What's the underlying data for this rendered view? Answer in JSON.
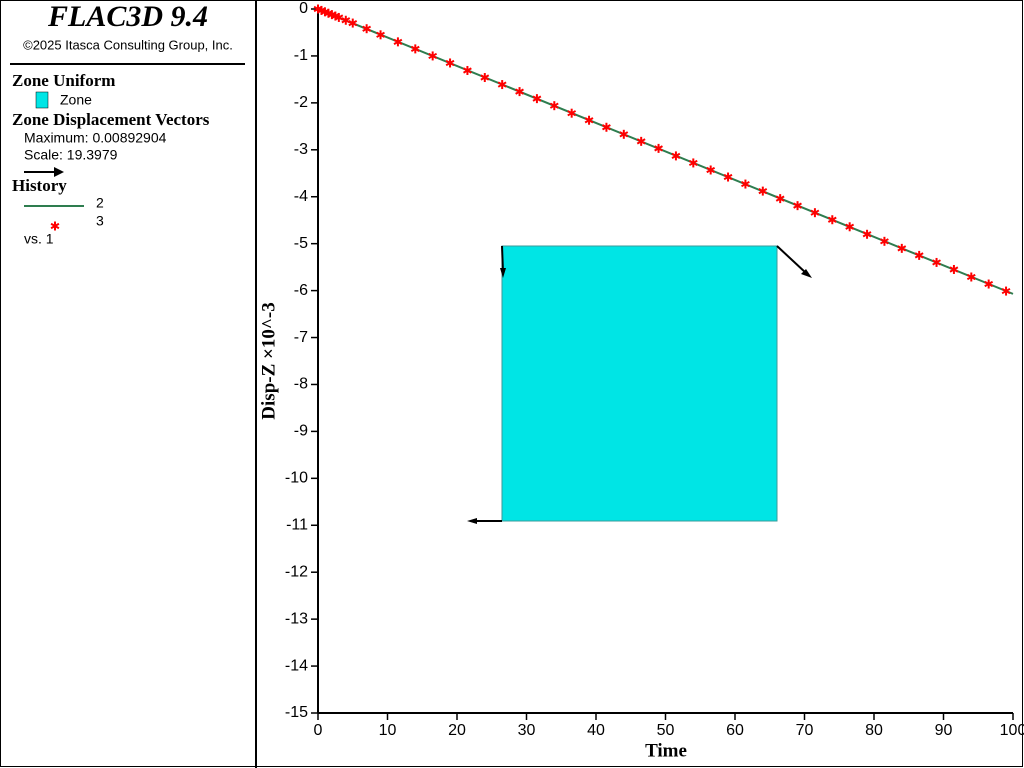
{
  "legend": {
    "product": "FLAC3D 9.4",
    "copyright": "©2025 Itasca Consulting Group, Inc.",
    "zone_title": "Zone Uniform",
    "zone_item": "Zone",
    "vectors_title": "Zone Displacement Vectors",
    "vectors_max": "Maximum: 0.00892904",
    "vectors_scale": "Scale: 19.3979",
    "history_title": "History",
    "history_vs": "vs. 1"
  },
  "chart_data": {
    "type": "line",
    "xlabel": "Time",
    "ylabel": "Disp-Z ×10^-3",
    "xlim": [
      0,
      100
    ],
    "xticks": [
      0,
      10,
      20,
      30,
      40,
      50,
      60,
      70,
      80,
      90,
      100
    ],
    "ylim": [
      -15,
      0
    ],
    "yticks": [
      0,
      -1,
      -2,
      -3,
      -4,
      -5,
      -6,
      -7,
      -8,
      -9,
      -10,
      -11,
      -12,
      -13,
      -14,
      -15
    ],
    "series": [
      {
        "name": "2",
        "color": "#2e7d4f",
        "style": "line",
        "x": [
          0,
          100
        ],
        "values": [
          0,
          -6.07
        ]
      },
      {
        "name": "3",
        "color": "#ff0000",
        "style": "marker",
        "x": [
          0,
          0.5,
          1,
          1.5,
          2,
          2.5,
          3,
          4,
          5,
          7,
          9,
          11.5,
          14,
          16.5,
          19,
          21.5,
          24,
          26.5,
          29,
          31.5,
          34,
          36.5,
          39,
          41.5,
          44,
          46.5,
          49,
          51.5,
          54,
          56.5,
          59,
          61.5,
          64,
          66.5,
          69,
          71.5,
          74,
          76.5,
          79,
          81.5,
          84,
          86.5,
          89,
          91.5,
          94,
          96.5,
          99
        ],
        "values": [
          0,
          -0.03,
          -0.06,
          -0.09,
          -0.12,
          -0.15,
          -0.18,
          -0.24,
          -0.3,
          -0.42,
          -0.55,
          -0.7,
          -0.85,
          -1.0,
          -1.15,
          -1.31,
          -1.46,
          -1.61,
          -1.76,
          -1.91,
          -2.06,
          -2.22,
          -2.37,
          -2.52,
          -2.67,
          -2.82,
          -2.97,
          -3.13,
          -3.28,
          -3.43,
          -3.58,
          -3.73,
          -3.88,
          -4.04,
          -4.19,
          -4.34,
          -4.49,
          -4.64,
          -4.8,
          -4.95,
          -5.1,
          -5.25,
          -5.4,
          -5.55,
          -5.71,
          -5.86,
          -6.01
        ]
      }
    ]
  }
}
